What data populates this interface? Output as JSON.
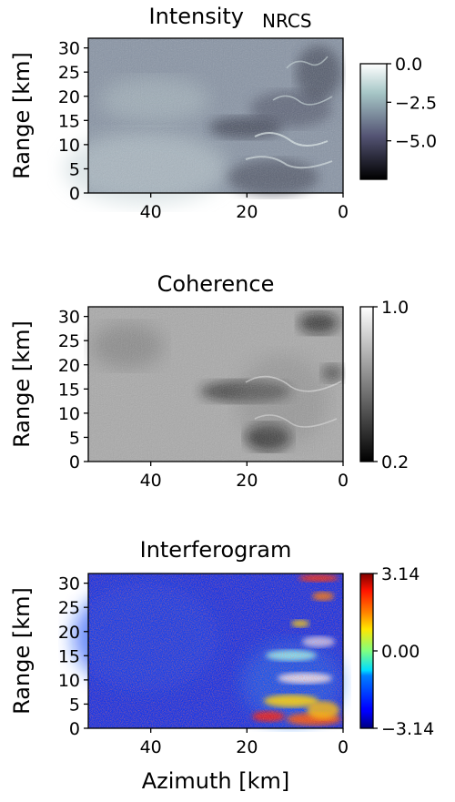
{
  "chart_data": [
    {
      "type": "heatmap",
      "title": "Intensity",
      "title_suffix": "NRCS",
      "ylabel": "Range [km]",
      "xlabel": "",
      "x_ticks": [
        "40",
        "20",
        "0"
      ],
      "y_ticks": [
        "0",
        "5",
        "10",
        "15",
        "20",
        "25",
        "30"
      ],
      "xlim": [
        53,
        0
      ],
      "ylim": [
        0,
        32
      ],
      "colormap": "bone",
      "colorbar": {
        "ticks": [
          "0.0",
          "−2.5",
          "−5.0"
        ],
        "range": [
          -7.5,
          0.0
        ]
      }
    },
    {
      "type": "heatmap",
      "title": "Coherence",
      "ylabel": "Range [km]",
      "xlabel": "",
      "x_ticks": [
        "40",
        "20",
        "0"
      ],
      "y_ticks": [
        "0",
        "5",
        "10",
        "15",
        "20",
        "25",
        "30"
      ],
      "xlim": [
        53,
        0
      ],
      "ylim": [
        0,
        32
      ],
      "colormap": "gray",
      "colorbar": {
        "ticks": [
          "1.0",
          "0.2"
        ],
        "range": [
          0.2,
          1.0
        ]
      }
    },
    {
      "type": "heatmap",
      "title": "Interferogram",
      "ylabel": "Range [km]",
      "xlabel": "Azimuth [km]",
      "x_ticks": [
        "40",
        "20",
        "0"
      ],
      "y_ticks": [
        "0",
        "5",
        "10",
        "15",
        "20",
        "25",
        "30"
      ],
      "xlim": [
        53,
        0
      ],
      "ylim": [
        0,
        32
      ],
      "colormap": "jet",
      "colorbar": {
        "ticks": [
          "3.14",
          "0.00",
          "−3.14"
        ],
        "range": [
          -3.14,
          3.14
        ]
      }
    }
  ]
}
